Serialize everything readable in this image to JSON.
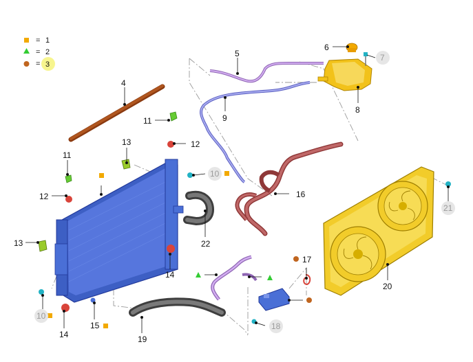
{
  "legend": [
    {
      "symbol": "square",
      "color": "#f2a900",
      "eq": "=",
      "value": "1"
    },
    {
      "symbol": "triangle",
      "color": "#33cc33",
      "eq": "=",
      "value": "2"
    },
    {
      "symbol": "circle",
      "color": "#c0651f",
      "eq": "=",
      "value": "3",
      "highlight": "#f6f37a"
    }
  ],
  "callouts": {
    "c4": "4",
    "c5": "5",
    "c6": "6",
    "c7": "7",
    "c8": "8",
    "c9": "9",
    "c10a": "10",
    "c10b": "10",
    "c11a": "11",
    "c11b": "11",
    "c12a": "12",
    "c12b": "12",
    "c13a": "13",
    "c13b": "13",
    "c14a": "14",
    "c14b": "14",
    "c15": "15",
    "c16": "16",
    "c17": "17",
    "c18": "18",
    "c19": "19",
    "c20": "20",
    "c21": "21",
    "c22": "22"
  },
  "colors": {
    "radiator": "#4a6fd6",
    "fan_shroud": "#f2cc2a",
    "expansion_tank": "#f2c21a",
    "hose_red": "#b45050",
    "hose_dark": "#555555",
    "hose_purple": "#b07acb",
    "hose_blue": "#7b7fd6",
    "cap": "#f2a900",
    "clip_green": "#66cc33",
    "clip_red": "#d9443a",
    "clip_cyan": "#22b2c4",
    "rod": "#b0561f"
  }
}
